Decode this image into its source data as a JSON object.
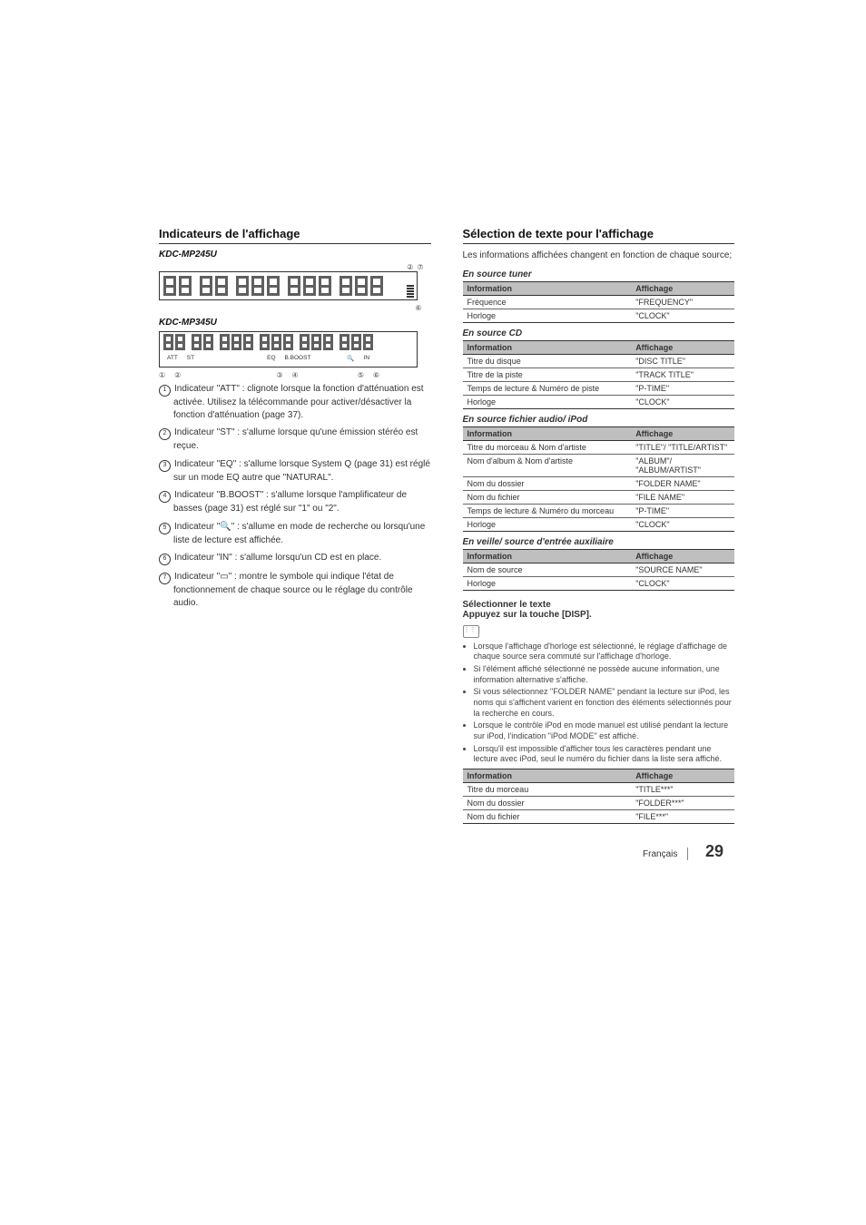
{
  "left": {
    "heading": "Indicateurs de l'affichage",
    "model1": "KDC-MP245U",
    "model2": "KDC-MP345U",
    "indicator_labels": [
      "ATT",
      "ST",
      "EQ",
      "B.BOOST",
      "IN"
    ],
    "callouts_top": [
      "②",
      "⑦"
    ],
    "callouts_bottom1": [
      "⑥"
    ],
    "callouts_bottom2": [
      "①",
      "②",
      "③",
      "④",
      "⑤",
      "⑥"
    ],
    "items": [
      {
        "n": "1",
        "text": "Indicateur \"ATT\" : clignote lorsque la fonction d'atténuation est activée. Utilisez la télécommande pour activer/désactiver la fonction d'atténuation (page 37)."
      },
      {
        "n": "2",
        "text": "Indicateur \"ST\" : s'allume lorsque qu'une émission stéréo est reçue."
      },
      {
        "n": "3",
        "text": "Indicateur \"EQ\" : s'allume lorsque System Q (page 31) est réglé sur un mode EQ autre que \"NATURAL\"."
      },
      {
        "n": "4",
        "text": "Indicateur \"B.BOOST\" : s'allume lorsque l'amplificateur de basses (page 31) est réglé sur \"1\" ou \"2\"."
      },
      {
        "n": "5",
        "text": "Indicateur \"🔍\" : s'allume en mode de recherche ou lorsqu'une liste de lecture est affichée."
      },
      {
        "n": "6",
        "text": "Indicateur \"IN\" : s'allume lorsqu'un CD est en place."
      },
      {
        "n": "7",
        "text": "Indicateur \"▭\" : montre le symbole qui indique l'état de fonctionnement de chaque source ou le réglage du contrôle audio."
      }
    ]
  },
  "right": {
    "heading": "Sélection de texte pour l'affichage",
    "intro": "Les informations affichées changent en fonction de chaque source;",
    "col_info": "Information",
    "col_aff": "Affichage",
    "tables": [
      {
        "title": "En source tuner",
        "rows": [
          [
            "Fréquence",
            "\"FREQUENCY\""
          ],
          [
            "Horloge",
            "\"CLOCK\""
          ]
        ]
      },
      {
        "title": "En source CD",
        "rows": [
          [
            "Titre du disque",
            "\"DISC TITLE\""
          ],
          [
            "Titre de la piste",
            "\"TRACK TITLE\""
          ],
          [
            "Temps de lecture & Numéro de piste",
            "\"P-TIME\""
          ],
          [
            "Horloge",
            "\"CLOCK\""
          ]
        ]
      },
      {
        "title": "En source fichier audio/ iPod",
        "rows": [
          [
            "Titre du morceau & Nom d'artiste",
            "\"TITLE\"/ \"TITLE/ARTIST\""
          ],
          [
            "Nom d'album & Nom d'artiste",
            "\"ALBUM\"/ \"ALBUM/ARTIST\""
          ],
          [
            "Nom du dossier",
            "\"FOLDER NAME\""
          ],
          [
            "Nom du fichier",
            "\"FILE NAME\""
          ],
          [
            "Temps de lecture & Numéro du morceau",
            "\"P-TIME\""
          ],
          [
            "Horloge",
            "\"CLOCK\""
          ]
        ]
      },
      {
        "title": "En veille/ source d'entrée auxiliaire",
        "rows": [
          [
            "Nom de source",
            "\"SOURCE NAME\""
          ],
          [
            "Horloge",
            "\"CLOCK\""
          ]
        ]
      }
    ],
    "step_title": "Sélectionner le texte",
    "step_sub": "Appuyez sur la touche [DISP].",
    "notes": [
      "Lorsque l'affichage d'horloge est sélectionné, le réglage d'affichage de chaque source sera commuté sur l'affichage d'horloge.",
      "Si l'élément affiché sélectionné ne possède aucune information, une information alternative s'affiche.",
      "Si vous sélectionnez \"FOLDER NAME\" pendant la lecture sur iPod, les noms qui s'affichent varient en fonction des éléments sélectionnés pour la recherche en cours.",
      "Lorsque le contrôle iPod en mode manuel est utilisé pendant la lecture sur iPod, l'indication \"iPod MODE\" est affiché.",
      "Lorsqu'il est impossible d'afficher tous les caractères pendant une lecture avec iPod, seul le numéro du fichier dans la liste sera affiché."
    ],
    "notes_table": [
      [
        "Titre du morceau",
        "\"TITLE***\""
      ],
      [
        "Nom du dossier",
        "\"FOLDER***\""
      ],
      [
        "Nom du fichier",
        "\"FILE***\""
      ]
    ]
  },
  "footer": {
    "lang": "Français",
    "page": "29"
  }
}
